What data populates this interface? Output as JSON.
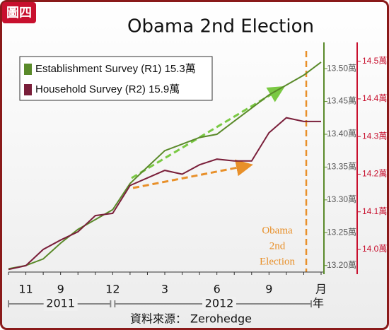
{
  "badge": "圖四",
  "chart_data": {
    "type": "line",
    "title": "Obama 2nd Election",
    "categories": [
      null,
      "11",
      null,
      "9",
      null,
      null,
      "12",
      null,
      null,
      "3",
      null,
      null,
      "6",
      null,
      null,
      "9",
      null,
      null,
      "月"
    ],
    "year_labels": [
      "2011",
      "2012"
    ],
    "year_unit": "年",
    "series": [
      {
        "name": "Establishment Survey (R1) 15.3萬",
        "color": "#5a8a2a",
        "axis": "y",
        "values": [
          13.195,
          13.2,
          13.21,
          13.234,
          13.255,
          13.27,
          13.285,
          13.325,
          13.35,
          13.375,
          13.385,
          13.395,
          13.4,
          13.42,
          13.44,
          13.46,
          13.475,
          13.49,
          13.51
        ]
      },
      {
        "name": "Household Survey (R2) 15.9萬",
        "color": "#7a1f3a",
        "axis": "y2",
        "values": [
          13.947,
          13.957,
          14.0,
          14.025,
          14.047,
          14.09,
          14.096,
          14.17,
          14.19,
          14.21,
          14.2,
          14.225,
          14.24,
          14.235,
          14.235,
          14.31,
          14.35,
          14.34,
          14.34
        ]
      }
    ],
    "ylim": [
      13.19,
      13.54
    ],
    "yticks": [
      {
        "value": 13.2,
        "label": "13.20萬"
      },
      {
        "value": 13.25,
        "label": "13.25萬"
      },
      {
        "value": 13.3,
        "label": "13.30萬"
      },
      {
        "value": 13.35,
        "label": "13.35萬"
      },
      {
        "value": 13.4,
        "label": "13.40萬"
      },
      {
        "value": 13.45,
        "label": "13.45萬"
      },
      {
        "value": 13.5,
        "label": "13.50萬"
      }
    ],
    "y2lim": [
      13.94,
      14.55
    ],
    "y2ticks": [
      {
        "value": 14.0,
        "label": "14.0萬"
      },
      {
        "value": 14.1,
        "label": "14.1萬"
      },
      {
        "value": 14.2,
        "label": "14.2萬"
      },
      {
        "value": 14.3,
        "label": "14.3萬"
      },
      {
        "value": 14.4,
        "label": "14.4萬"
      },
      {
        "value": 14.5,
        "label": "14.5萬"
      }
    ],
    "annotation": [
      "Obama",
      "2nd",
      "Election"
    ],
    "source": "資料來源： Zerohedge",
    "grid": false
  }
}
